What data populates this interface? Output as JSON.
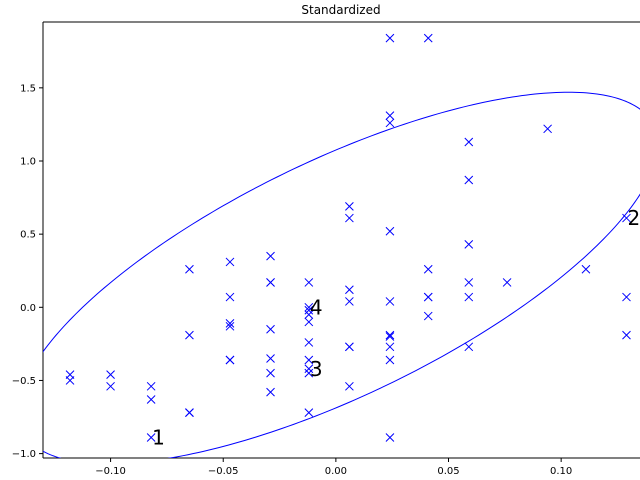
{
  "chart_data": {
    "type": "scatter",
    "title": "Standardized",
    "xlabel": "",
    "ylabel": "",
    "xlim": [
      -0.13,
      0.135
    ],
    "ylim": [
      -1.03,
      1.95
    ],
    "grid": false,
    "x_ticks": [
      -0.1,
      -0.05,
      0.0,
      0.05,
      0.1
    ],
    "x_tick_labels": [
      "−0.10",
      "−0.05",
      "0.00",
      "0.05",
      "0.10"
    ],
    "y_ticks": [
      -1.0,
      -0.5,
      0.0,
      0.5,
      1.0,
      1.5
    ],
    "y_tick_labels": [
      "−1.0",
      "−0.5",
      "0.0",
      "0.5",
      "1.0",
      "1.5"
    ],
    "marker": "x",
    "color": "#0000ff",
    "points": [
      [
        0.024,
        1.84
      ],
      [
        0.041,
        1.84
      ],
      [
        0.024,
        1.31
      ],
      [
        0.024,
        1.26
      ],
      [
        0.094,
        1.22
      ],
      [
        0.059,
        1.13
      ],
      [
        0.059,
        0.87
      ],
      [
        0.006,
        0.69
      ],
      [
        0.006,
        0.61
      ],
      [
        0.024,
        0.52
      ],
      [
        0.129,
        0.61
      ],
      [
        0.059,
        0.43
      ],
      [
        -0.029,
        0.35
      ],
      [
        -0.047,
        0.31
      ],
      [
        -0.065,
        0.26
      ],
      [
        -0.029,
        0.17
      ],
      [
        -0.029,
        0.17
      ],
      [
        -0.012,
        0.17
      ],
      [
        0.041,
        0.26
      ],
      [
        0.059,
        0.17
      ],
      [
        0.076,
        0.17
      ],
      [
        0.111,
        0.26
      ],
      [
        0.006,
        0.12
      ],
      [
        -0.047,
        0.07
      ],
      [
        0.006,
        0.04
      ],
      [
        0.024,
        0.04
      ],
      [
        0.041,
        0.07
      ],
      [
        0.041,
        0.07
      ],
      [
        0.059,
        0.07
      ],
      [
        0.129,
        0.07
      ],
      [
        -0.012,
        0.0
      ],
      [
        -0.012,
        -0.02
      ],
      [
        -0.012,
        -0.05
      ],
      [
        0.041,
        -0.06
      ],
      [
        -0.012,
        -0.1
      ],
      [
        -0.047,
        -0.11
      ],
      [
        -0.047,
        -0.13
      ],
      [
        -0.029,
        -0.15
      ],
      [
        -0.065,
        -0.19
      ],
      [
        0.024,
        -0.19
      ],
      [
        0.024,
        -0.2
      ],
      [
        0.129,
        -0.19
      ],
      [
        -0.012,
        -0.24
      ],
      [
        0.006,
        -0.27
      ],
      [
        0.006,
        -0.27
      ],
      [
        0.024,
        -0.27
      ],
      [
        0.059,
        -0.27
      ],
      [
        -0.029,
        -0.35
      ],
      [
        -0.012,
        -0.36
      ],
      [
        -0.047,
        -0.36
      ],
      [
        -0.047,
        -0.36
      ],
      [
        0.024,
        -0.36
      ],
      [
        -0.012,
        -0.42
      ],
      [
        -0.012,
        -0.45
      ],
      [
        -0.029,
        -0.45
      ],
      [
        -0.118,
        -0.46
      ],
      [
        -0.118,
        -0.5
      ],
      [
        -0.1,
        -0.46
      ],
      [
        -0.1,
        -0.54
      ],
      [
        -0.082,
        -0.54
      ],
      [
        0.006,
        -0.54
      ],
      [
        -0.029,
        -0.58
      ],
      [
        -0.082,
        -0.63
      ],
      [
        -0.065,
        -0.72
      ],
      [
        -0.065,
        -0.72
      ],
      [
        -0.012,
        -0.72
      ],
      [
        -0.082,
        -0.89
      ],
      [
        0.024,
        -0.89
      ]
    ],
    "ellipse": {
      "center": [
        0.001,
        0.2
      ],
      "semi_axis_x": 0.142,
      "semi_axis_y": 1.27,
      "correlation_shape": 0.72,
      "color": "#0000ff"
    },
    "annotations": [
      {
        "text": "1",
        "x": -0.082,
        "y": -0.89
      },
      {
        "text": "2",
        "x": 0.129,
        "y": 0.61
      },
      {
        "text": "3",
        "x": -0.012,
        "y": -0.42
      },
      {
        "text": "4",
        "x": -0.012,
        "y": 0.0
      }
    ]
  }
}
